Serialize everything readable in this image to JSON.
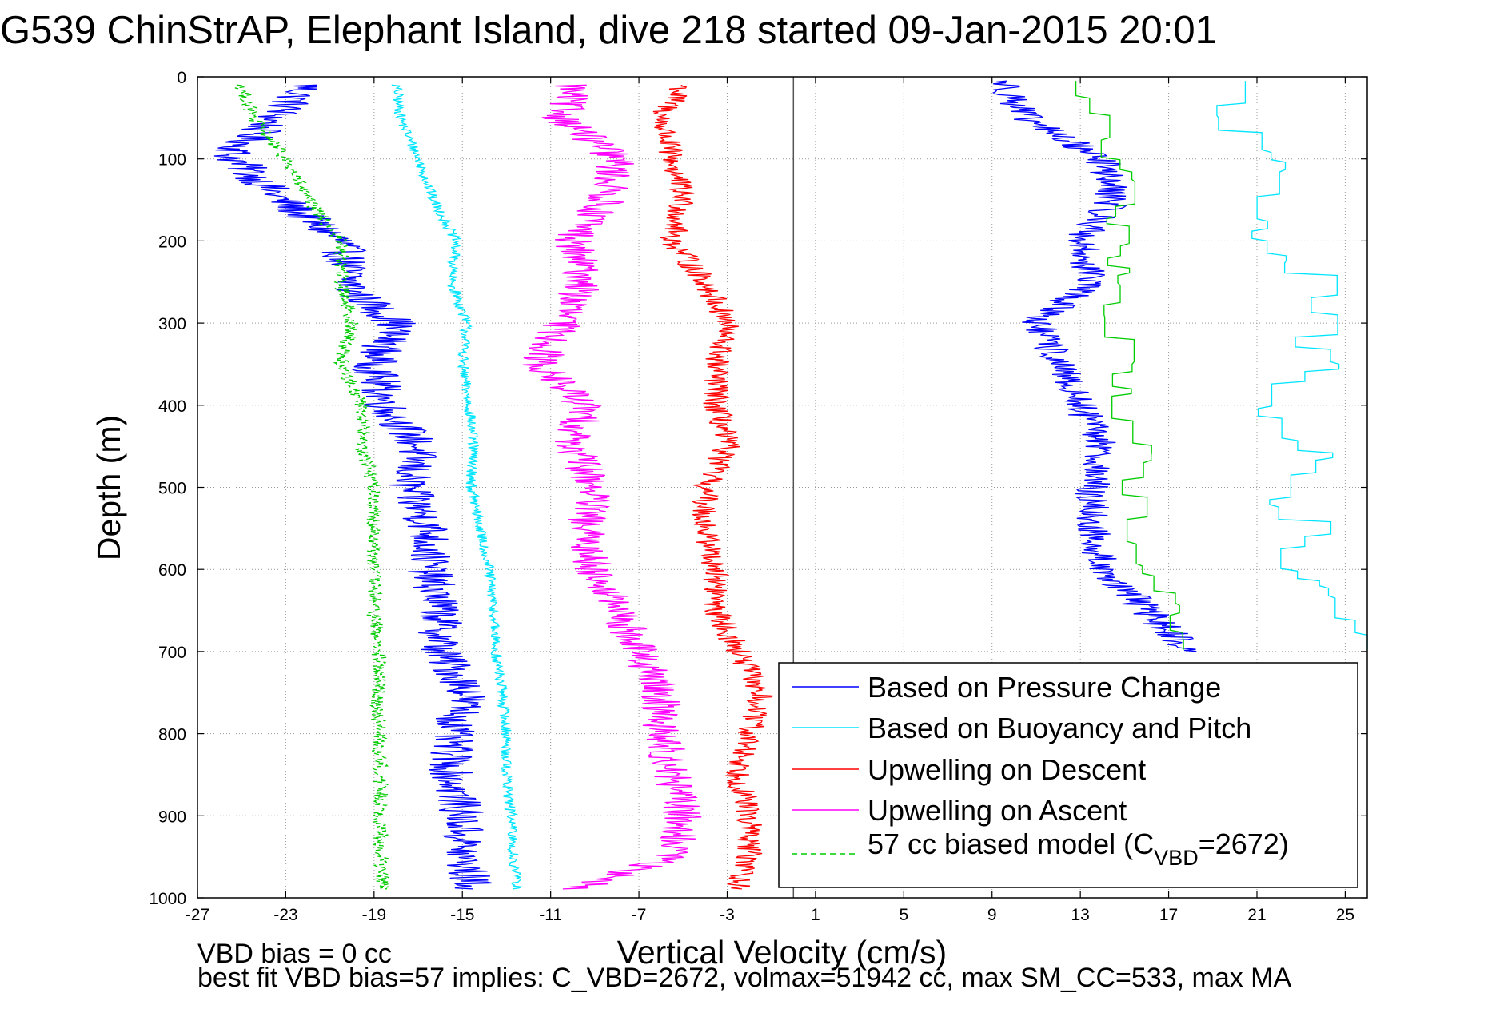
{
  "page_title": "G539 ChinStrAP, Elephant Island, dive 218 started 09-Jan-2015 20:01",
  "footer": {
    "line1": "VBD bias = 0 cc",
    "line2": "best fit VBD bias=57 implies: C_VBD=2672, volmax=51942 cc, max SM_CC=533, max MA"
  },
  "chart_data": {
    "type": "line",
    "title": "G539 ChinStrAP, Elephant Island, dive 218 started 09-Jan-2015 20:01",
    "xlabel": "Vertical Velocity (cm/s)",
    "ylabel": "Depth (m)",
    "xlim": [
      -27,
      26
    ],
    "ylim": [
      1000,
      0
    ],
    "x_ticks": [
      "-27",
      "-23",
      "-19",
      "-15",
      "-11",
      "-7",
      "-3",
      "1",
      "5",
      "9",
      "13",
      "17",
      "21",
      "25"
    ],
    "y_ticks": [
      "0",
      "100",
      "200",
      "300",
      "400",
      "500",
      "600",
      "700",
      "800",
      "900",
      "1000"
    ],
    "grid": true,
    "legend_position": "bottom-right",
    "zero_line_x": 0,
    "series": [
      {
        "name": "Based on Pressure Change",
        "color": "#0000ff",
        "style": "solid",
        "jitter": 1.0,
        "points": [
          {
            "d": 10,
            "v": -22.0
          },
          {
            "d": 50,
            "v": -23.5
          },
          {
            "d": 95,
            "v": -25.5
          },
          {
            "d": 150,
            "v": -23.2
          },
          {
            "d": 200,
            "v": -20.5
          },
          {
            "d": 260,
            "v": -20.0
          },
          {
            "d": 300,
            "v": -18.0
          },
          {
            "d": 350,
            "v": -19.0
          },
          {
            "d": 400,
            "v": -18.5
          },
          {
            "d": 450,
            "v": -17.0
          },
          {
            "d": 500,
            "v": -17.5
          },
          {
            "d": 550,
            "v": -16.5
          },
          {
            "d": 600,
            "v": -16.5
          },
          {
            "d": 650,
            "v": -16.0
          },
          {
            "d": 700,
            "v": -16.0
          },
          {
            "d": 750,
            "v": -14.7
          },
          {
            "d": 800,
            "v": -15.5
          },
          {
            "d": 850,
            "v": -15.5
          },
          {
            "d": 900,
            "v": -15.0
          },
          {
            "d": 950,
            "v": -15.0
          },
          {
            "d": 990,
            "v": -14.5
          }
        ]
      },
      {
        "name": "Based on Buoyancy and Pitch",
        "color": "#00e5ff",
        "style": "solid",
        "jitter": 0.25,
        "points": [
          {
            "d": 10,
            "v": -18.0
          },
          {
            "d": 50,
            "v": -17.8
          },
          {
            "d": 100,
            "v": -17.0
          },
          {
            "d": 150,
            "v": -16.3
          },
          {
            "d": 200,
            "v": -15.3
          },
          {
            "d": 250,
            "v": -15.5
          },
          {
            "d": 300,
            "v": -14.8
          },
          {
            "d": 350,
            "v": -15.0
          },
          {
            "d": 400,
            "v": -14.7
          },
          {
            "d": 450,
            "v": -14.5
          },
          {
            "d": 500,
            "v": -14.6
          },
          {
            "d": 550,
            "v": -14.2
          },
          {
            "d": 600,
            "v": -13.8
          },
          {
            "d": 650,
            "v": -13.6
          },
          {
            "d": 700,
            "v": -13.5
          },
          {
            "d": 750,
            "v": -13.2
          },
          {
            "d": 800,
            "v": -13.0
          },
          {
            "d": 850,
            "v": -13.0
          },
          {
            "d": 900,
            "v": -12.8
          },
          {
            "d": 950,
            "v": -12.7
          },
          {
            "d": 990,
            "v": -12.5
          }
        ]
      },
      {
        "name": "Upwelling on Descent",
        "color": "#ff0000",
        "style": "solid",
        "jitter": 0.6,
        "points": [
          {
            "d": 10,
            "v": -5.0
          },
          {
            "d": 50,
            "v": -6.0
          },
          {
            "d": 100,
            "v": -5.5
          },
          {
            "d": 150,
            "v": -5.0
          },
          {
            "d": 200,
            "v": -5.5
          },
          {
            "d": 250,
            "v": -4.0
          },
          {
            "d": 300,
            "v": -3.0
          },
          {
            "d": 350,
            "v": -3.5
          },
          {
            "d": 400,
            "v": -3.5
          },
          {
            "d": 450,
            "v": -3.0
          },
          {
            "d": 500,
            "v": -4.0
          },
          {
            "d": 550,
            "v": -4.0
          },
          {
            "d": 600,
            "v": -3.5
          },
          {
            "d": 650,
            "v": -3.5
          },
          {
            "d": 700,
            "v": -2.5
          },
          {
            "d": 750,
            "v": -1.5
          },
          {
            "d": 800,
            "v": -2.0
          },
          {
            "d": 850,
            "v": -2.5
          },
          {
            "d": 900,
            "v": -2.0
          },
          {
            "d": 950,
            "v": -2.0
          },
          {
            "d": 990,
            "v": -2.5
          }
        ]
      },
      {
        "name": "Upwelling on Ascent",
        "color": "#ff00ff",
        "style": "solid",
        "jitter": 0.9,
        "points": [
          {
            "d": 10,
            "v": -10.0
          },
          {
            "d": 50,
            "v": -10.5
          },
          {
            "d": 100,
            "v": -8.0
          },
          {
            "d": 150,
            "v": -8.5
          },
          {
            "d": 200,
            "v": -10.0
          },
          {
            "d": 250,
            "v": -9.5
          },
          {
            "d": 300,
            "v": -10.5
          },
          {
            "d": 350,
            "v": -11.5
          },
          {
            "d": 400,
            "v": -9.5
          },
          {
            "d": 450,
            "v": -10.0
          },
          {
            "d": 500,
            "v": -9.0
          },
          {
            "d": 550,
            "v": -9.5
          },
          {
            "d": 600,
            "v": -9.0
          },
          {
            "d": 650,
            "v": -8.0
          },
          {
            "d": 700,
            "v": -7.0
          },
          {
            "d": 750,
            "v": -6.0
          },
          {
            "d": 800,
            "v": -6.0
          },
          {
            "d": 850,
            "v": -5.5
          },
          {
            "d": 900,
            "v": -5.0
          },
          {
            "d": 950,
            "v": -5.5
          },
          {
            "d": 990,
            "v": -10.0
          }
        ]
      },
      {
        "name": "57 cc biased model (C_VBD=2672)",
        "color": "#00cc00",
        "style": "dashed",
        "jitter": 0.35,
        "points": [
          {
            "d": 10,
            "v": -25.0
          },
          {
            "d": 50,
            "v": -24.5
          },
          {
            "d": 100,
            "v": -23.0
          },
          {
            "d": 150,
            "v": -22.0
          },
          {
            "d": 200,
            "v": -20.5
          },
          {
            "d": 250,
            "v": -20.5
          },
          {
            "d": 300,
            "v": -20.0
          },
          {
            "d": 350,
            "v": -20.5
          },
          {
            "d": 400,
            "v": -19.5
          },
          {
            "d": 450,
            "v": -19.5
          },
          {
            "d": 500,
            "v": -19.0
          },
          {
            "d": 550,
            "v": -19.0
          },
          {
            "d": 600,
            "v": -19.0
          },
          {
            "d": 650,
            "v": -19.0
          },
          {
            "d": 700,
            "v": -18.8
          },
          {
            "d": 750,
            "v": -18.8
          },
          {
            "d": 800,
            "v": -18.8
          },
          {
            "d": 850,
            "v": -18.7
          },
          {
            "d": 900,
            "v": -18.7
          },
          {
            "d": 950,
            "v": -18.7
          },
          {
            "d": 990,
            "v": -18.6
          }
        ]
      },
      {
        "name": "",
        "color": "#0000ff",
        "style": "solid",
        "jitter": 0.8,
        "points": [
          {
            "d": 5,
            "v": 9.5
          },
          {
            "d": 50,
            "v": 10.5
          },
          {
            "d": 100,
            "v": 14.0
          },
          {
            "d": 150,
            "v": 14.5
          },
          {
            "d": 200,
            "v": 13.0
          },
          {
            "d": 250,
            "v": 13.5
          },
          {
            "d": 300,
            "v": 11.0
          },
          {
            "d": 350,
            "v": 12.0
          },
          {
            "d": 400,
            "v": 13.0
          },
          {
            "d": 450,
            "v": 14.0
          },
          {
            "d": 500,
            "v": 13.5
          },
          {
            "d": 550,
            "v": 13.5
          },
          {
            "d": 600,
            "v": 14.0
          },
          {
            "d": 650,
            "v": 16.0
          },
          {
            "d": 700,
            "v": 18.0
          }
        ]
      },
      {
        "name": "",
        "color": "#00e5ff",
        "style": "step",
        "jitter": 0.4,
        "points": [
          {
            "d": 5,
            "v": 19.5
          },
          {
            "d": 50,
            "v": 19.0
          },
          {
            "d": 100,
            "v": 22.5
          },
          {
            "d": 150,
            "v": 21.5
          },
          {
            "d": 200,
            "v": 21.5
          },
          {
            "d": 250,
            "v": 24.5
          },
          {
            "d": 300,
            "v": 23.5
          },
          {
            "d": 350,
            "v": 24.0
          },
          {
            "d": 400,
            "v": 21.0
          },
          {
            "d": 450,
            "v": 24.0
          },
          {
            "d": 500,
            "v": 21.0
          },
          {
            "d": 550,
            "v": 24.0
          },
          {
            "d": 600,
            "v": 22.0
          },
          {
            "d": 650,
            "v": 25.5
          },
          {
            "d": 700,
            "v": 25.5
          }
        ]
      },
      {
        "name": "",
        "color": "#00cc00",
        "style": "step",
        "jitter": 0.3,
        "points": [
          {
            "d": 5,
            "v": 13.0
          },
          {
            "d": 50,
            "v": 14.0
          },
          {
            "d": 100,
            "v": 15.0
          },
          {
            "d": 150,
            "v": 15.0
          },
          {
            "d": 200,
            "v": 14.5
          },
          {
            "d": 250,
            "v": 15.0
          },
          {
            "d": 300,
            "v": 14.5
          },
          {
            "d": 350,
            "v": 15.0
          },
          {
            "d": 400,
            "v": 15.0
          },
          {
            "d": 450,
            "v": 15.5
          },
          {
            "d": 500,
            "v": 15.5
          },
          {
            "d": 550,
            "v": 15.5
          },
          {
            "d": 600,
            "v": 16.0
          },
          {
            "d": 650,
            "v": 17.0
          },
          {
            "d": 700,
            "v": 17.5
          }
        ]
      }
    ]
  }
}
